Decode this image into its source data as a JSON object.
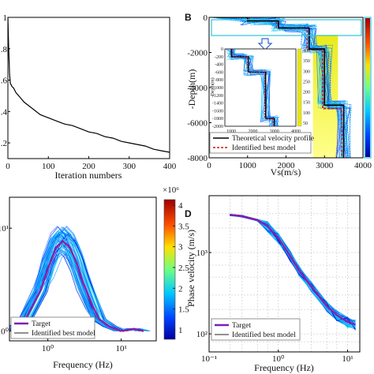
{
  "chart_data": [
    {
      "type": "line",
      "panel": "",
      "xlabel": "Iteration numbers",
      "ylabel": "",
      "xlim": [
        0,
        400
      ],
      "ylim": [
        0.1,
        1.0
      ],
      "xticks": [
        "0",
        "100",
        "200",
        "300",
        "400"
      ],
      "yticks": [
        ".2",
        ".4",
        ".6",
        ".8",
        "1"
      ],
      "series": [
        {
          "x": [
            0,
            2,
            4,
            6,
            10,
            14,
            20,
            30,
            40,
            60,
            80,
            100,
            120,
            140,
            160,
            180,
            200,
            220,
            240,
            260,
            280,
            300,
            320,
            340,
            360,
            380,
            400
          ],
          "y": [
            1.0,
            0.8,
            0.64,
            0.58,
            0.56,
            0.55,
            0.52,
            0.49,
            0.46,
            0.42,
            0.38,
            0.36,
            0.34,
            0.32,
            0.31,
            0.29,
            0.27,
            0.26,
            0.24,
            0.23,
            0.21,
            0.2,
            0.19,
            0.18,
            0.16,
            0.15,
            0.14
          ]
        }
      ]
    },
    {
      "type": "line",
      "panel": "B",
      "xlabel": "Vs(m/s)",
      "ylabel": "-Depth(m)",
      "xlim": [
        0,
        4000
      ],
      "ylim": [
        -8000,
        0
      ],
      "xticks": [
        "0",
        "1000",
        "2000",
        "3000",
        "4000"
      ],
      "yticks": [
        "0",
        "-2000",
        "-4000",
        "-6000",
        "-8000"
      ],
      "legend": [
        "Theoretical velocity profile",
        "Identified best model"
      ],
      "colorbar_ticks": [
        "400",
        "350",
        "300",
        "250",
        "200",
        "150",
        "100",
        "50"
      ],
      "inset": {
        "xticks": [
          "1000",
          "2000",
          "3000",
          "4000"
        ],
        "yticks": [
          "0",
          "-200",
          "-400",
          "-600",
          "-800",
          "-1000",
          "-1200",
          "-1400",
          "-1600",
          "-1800",
          "-2000"
        ],
        "ylabel": "-Depth(m)"
      },
      "series": [
        {
          "name": "Theoretical velocity profile",
          "vs": [
            200,
            1000,
            1000,
            1800,
            1800,
            2600,
            2600,
            3000,
            3000,
            3500,
            3500
          ],
          "depth": [
            0,
            0,
            -200,
            -200,
            -600,
            -600,
            -1800,
            -1800,
            -5000,
            -5000,
            -8000
          ]
        },
        {
          "name": "Identified best model",
          "vs": [
            220,
            1050,
            1050,
            1750,
            1750,
            2550,
            2550,
            2950,
            2950,
            3450,
            3450
          ],
          "depth": [
            0,
            0,
            -180,
            -180,
            -620,
            -620,
            -1850,
            -1850,
            -5200,
            -5200,
            -8000
          ]
        }
      ]
    },
    {
      "type": "line",
      "panel": "",
      "xlabel": "Frequency (Hz)",
      "ylabel": "",
      "xscale": "log",
      "yscale": "log",
      "xlim": [
        0.3,
        30
      ],
      "ylim": [
        0.8,
        20
      ],
      "xticks": [
        "10⁰",
        "10¹"
      ],
      "yticks": [
        "10⁰",
        "10¹"
      ],
      "colorbar_label": "×10⁶",
      "colorbar_ticks": [
        "4",
        "3.5",
        "3",
        "2.5",
        "2",
        "1.5",
        "1"
      ],
      "legend": [
        "Target",
        "Identified best model"
      ],
      "series": [
        {
          "name": "Target",
          "x": [
            0.3,
            0.5,
            0.8,
            1.0,
            1.3,
            1.6,
            2.0,
            2.5,
            3.0,
            4.0,
            5.0,
            7.0,
            10,
            15,
            20
          ],
          "y": [
            1.0,
            1.3,
            2.5,
            4.0,
            6.5,
            7.5,
            6.5,
            4.5,
            3.0,
            1.8,
            1.3,
            1.1,
            1.0,
            1.05,
            1.0
          ]
        }
      ]
    },
    {
      "type": "line",
      "panel": "D",
      "xlabel": "Frequency (Hz)",
      "ylabel": "Phase velocity (m/s)",
      "xscale": "log",
      "yscale": "log",
      "xlim": [
        0.1,
        15
      ],
      "ylim": [
        60,
        5000
      ],
      "xticks": [
        "10⁻¹",
        "10⁰",
        "10¹"
      ],
      "yticks": [
        "10²",
        "10³"
      ],
      "legend": [
        "Target",
        "Identified best model"
      ],
      "series": [
        {
          "name": "Target",
          "x": [
            0.2,
            0.3,
            0.5,
            0.7,
            1.0,
            1.5,
            2.0,
            3.0,
            5.0,
            7.0,
            10,
            13
          ],
          "y": [
            2900,
            2800,
            2500,
            2100,
            1500,
            900,
            600,
            380,
            220,
            170,
            140,
            130
          ]
        }
      ]
    }
  ]
}
